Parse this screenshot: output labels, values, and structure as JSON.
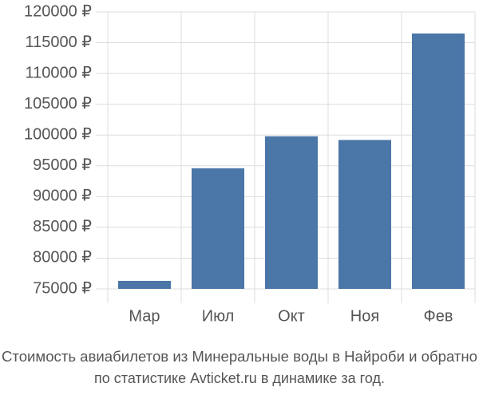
{
  "chart_data": {
    "type": "bar",
    "caption": [
      "Стоимость авиабилетов из Минеральные воды в Найроби и обратно",
      "по статистике Avticket.ru в динамике за год."
    ],
    "categories": [
      "Мар",
      "Июл",
      "Окт",
      "Ноя",
      "Фев"
    ],
    "values": [
      76300,
      94600,
      99800,
      99200,
      116500
    ],
    "color": "#4a76a8",
    "ylim": [
      75000,
      120000
    ],
    "yticks": [
      {
        "value": 75000,
        "label": "75000 ₽"
      },
      {
        "value": 80000,
        "label": "80000 ₽"
      },
      {
        "value": 85000,
        "label": "85000 ₽"
      },
      {
        "value": 90000,
        "label": "90000 ₽"
      },
      {
        "value": 95000,
        "label": "95000 ₽"
      },
      {
        "value": 100000,
        "label": "100000 ₽"
      },
      {
        "value": 105000,
        "label": "105000 ₽"
      },
      {
        "value": 110000,
        "label": "110000 ₽"
      },
      {
        "value": 115000,
        "label": "115000 ₽"
      },
      {
        "value": 120000,
        "label": "120000 ₽"
      }
    ],
    "grid": true
  }
}
